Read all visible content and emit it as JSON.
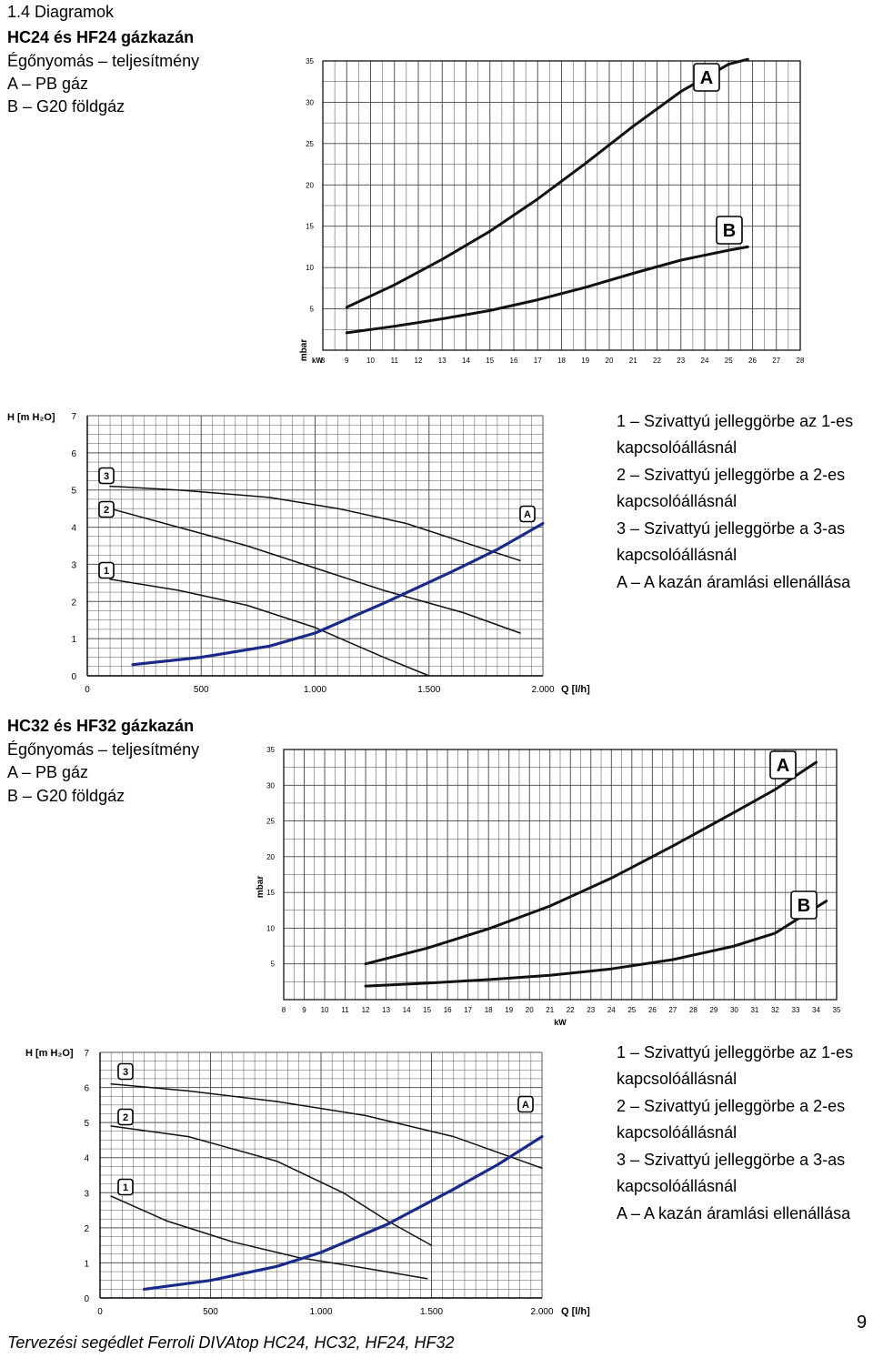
{
  "section_heading": "1.4 Diagramok",
  "block1": {
    "title": "HC24 és HF24 gázkazán",
    "subtitle": "Égőnyomás – teljesítmény",
    "line_a": "A – PB gáz",
    "line_b": "B – G20 földgáz"
  },
  "block2": {
    "title": "HC32 és HF32 gázkazán",
    "subtitle": "Égőnyomás – teljesítmény",
    "line_a": "A – PB gáz",
    "line_b": "B – G20 földgáz"
  },
  "legend_pump": [
    "1 – Szivattyú jelleggörbe az 1-es",
    "kapcsolóállásnál",
    "2 – Szivattyú jelleggörbe a 2-es",
    "kapcsolóállásnál",
    "3 – Szivattyú jelleggörbe a 3-as",
    "kapcsolóállásnál",
    "A – A kazán áramlási ellenállása"
  ],
  "footer": "Tervezési segédlet Ferroli DIVAtop HC24, HC32, HF24, HF32",
  "page_number": "9",
  "chart_data": [
    {
      "id": "burner-hc24",
      "type": "line",
      "xlabel": "kW",
      "ylabel": "mbar",
      "xlim": [
        8,
        28
      ],
      "ylim": [
        0,
        35
      ],
      "x_ticks": [
        8,
        9,
        10,
        11,
        12,
        13,
        14,
        15,
        16,
        17,
        18,
        19,
        20,
        21,
        22,
        23,
        24,
        25,
        26,
        27,
        28
      ],
      "y_ticks": [
        5,
        10,
        15,
        20,
        25,
        30,
        35
      ],
      "grid": true,
      "series": [
        {
          "name": "A",
          "x": [
            9,
            11,
            13,
            15,
            17,
            19,
            21,
            23,
            25,
            25.8
          ],
          "y": [
            5.2,
            7.9,
            11.0,
            14.4,
            18.3,
            22.6,
            27.1,
            31.3,
            34.6,
            35.2
          ]
        },
        {
          "name": "B",
          "x": [
            9,
            11,
            13,
            15,
            17,
            19,
            21,
            23,
            25,
            25.8
          ],
          "y": [
            2.1,
            2.9,
            3.8,
            4.8,
            6.1,
            7.6,
            9.3,
            10.9,
            12.1,
            12.5
          ]
        }
      ],
      "series_colors": [
        "#111111",
        "#111111"
      ]
    },
    {
      "id": "pump-hc24",
      "type": "line",
      "xlabel": "Q [l/h]",
      "ylabel": "H [m H₂O]",
      "xlim": [
        0,
        2000
      ],
      "ylim": [
        0,
        7
      ],
      "x_ticks": [
        0,
        500,
        1000,
        1500,
        2000
      ],
      "x_tick_labels": [
        "0",
        "500",
        "1.000",
        "1.500",
        "2.000"
      ],
      "y_ticks": [
        0,
        1,
        2,
        3,
        4,
        5,
        6,
        7
      ],
      "grid": true,
      "series": [
        {
          "name": "1",
          "x": [
            100,
            400,
            700,
            1000,
            1300,
            1500
          ],
          "y": [
            2.6,
            2.3,
            1.9,
            1.3,
            0.5,
            0.0
          ]
        },
        {
          "name": "2",
          "x": [
            100,
            400,
            700,
            1000,
            1300,
            1650,
            1900
          ],
          "y": [
            4.5,
            4.0,
            3.5,
            2.9,
            2.3,
            1.7,
            1.15
          ]
        },
        {
          "name": "3",
          "x": [
            100,
            400,
            800,
            1100,
            1400,
            1700,
            1900
          ],
          "y": [
            5.1,
            5.0,
            4.8,
            4.5,
            4.1,
            3.5,
            3.1
          ]
        },
        {
          "name": "A",
          "x": [
            200,
            500,
            800,
            1000,
            1300,
            1600,
            1800,
            2000
          ],
          "y": [
            0.3,
            0.5,
            0.8,
            1.15,
            1.95,
            2.8,
            3.4,
            4.1
          ]
        }
      ],
      "series_colors": [
        "#111111",
        "#111111",
        "#111111",
        "#1a2a8a"
      ]
    },
    {
      "id": "burner-hc32",
      "type": "line",
      "xlabel": "kW",
      "ylabel": "mbar",
      "xlim": [
        8,
        35
      ],
      "ylim": [
        0,
        35
      ],
      "x_ticks": [
        8,
        9,
        10,
        11,
        12,
        13,
        14,
        15,
        16,
        17,
        18,
        19,
        20,
        21,
        22,
        23,
        24,
        25,
        26,
        27,
        28,
        29,
        30,
        31,
        32,
        33,
        34,
        35
      ],
      "y_ticks": [
        5,
        10,
        15,
        20,
        25,
        30,
        35
      ],
      "grid": true,
      "series": [
        {
          "name": "A",
          "x": [
            12,
            15,
            18,
            21,
            24,
            27,
            30,
            32,
            34
          ],
          "y": [
            5.0,
            7.2,
            9.9,
            13.1,
            17.0,
            21.5,
            26.2,
            29.4,
            33.2
          ]
        },
        {
          "name": "B",
          "x": [
            12,
            15,
            18,
            21,
            24,
            27,
            30,
            32,
            34.5
          ],
          "y": [
            1.9,
            2.3,
            2.8,
            3.4,
            4.3,
            5.6,
            7.5,
            9.3,
            13.8
          ]
        }
      ],
      "series_colors": [
        "#111111",
        "#111111"
      ]
    },
    {
      "id": "pump-hc32",
      "type": "line",
      "xlabel": "Q [l/h]",
      "ylabel": "H [m H₂O]",
      "xlim": [
        0,
        2000
      ],
      "ylim": [
        0,
        7
      ],
      "x_ticks": [
        0,
        500,
        1000,
        1500,
        2000
      ],
      "x_tick_labels": [
        "0",
        "500",
        "1.000",
        "1.500",
        "2.000"
      ],
      "y_ticks": [
        0,
        1,
        2,
        3,
        4,
        5,
        6,
        7
      ],
      "grid": true,
      "series": [
        {
          "name": "1",
          "x": [
            50,
            300,
            600,
            900,
            1200,
            1480
          ],
          "y": [
            2.9,
            2.2,
            1.6,
            1.15,
            0.85,
            0.55
          ]
        },
        {
          "name": "2",
          "x": [
            50,
            400,
            800,
            1100,
            1300,
            1500
          ],
          "y": [
            4.9,
            4.6,
            3.9,
            3.0,
            2.2,
            1.5
          ]
        },
        {
          "name": "3",
          "x": [
            50,
            400,
            800,
            1200,
            1600,
            2000
          ],
          "y": [
            6.1,
            5.9,
            5.6,
            5.2,
            4.6,
            3.7
          ]
        },
        {
          "name": "A",
          "x": [
            200,
            500,
            800,
            1000,
            1300,
            1600,
            1800,
            2000
          ],
          "y": [
            0.25,
            0.5,
            0.9,
            1.3,
            2.1,
            3.1,
            3.8,
            4.6
          ]
        }
      ],
      "series_colors": [
        "#111111",
        "#111111",
        "#111111",
        "#1a2a8a"
      ]
    }
  ]
}
